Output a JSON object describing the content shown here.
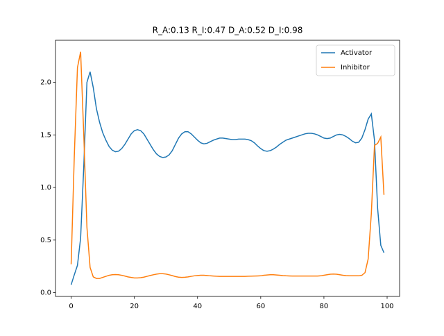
{
  "chart_data": {
    "type": "line",
    "title": "R_A:0.13 R_I:0.47 D_A:0.52 D_I:0.98",
    "x": [
      0,
      1,
      2,
      3,
      4,
      5,
      6,
      7,
      8,
      9,
      10,
      11,
      12,
      13,
      14,
      15,
      16,
      17,
      18,
      19,
      20,
      21,
      22,
      23,
      24,
      25,
      26,
      27,
      28,
      29,
      30,
      31,
      32,
      33,
      34,
      35,
      36,
      37,
      38,
      39,
      40,
      41,
      42,
      43,
      44,
      45,
      46,
      47,
      48,
      49,
      50,
      51,
      52,
      53,
      54,
      55,
      56,
      57,
      58,
      59,
      60,
      61,
      62,
      63,
      64,
      65,
      66,
      67,
      68,
      69,
      70,
      71,
      72,
      73,
      74,
      75,
      76,
      77,
      78,
      79,
      80,
      81,
      82,
      83,
      84,
      85,
      86,
      87,
      88,
      89,
      90,
      91,
      92,
      93,
      94,
      95,
      96,
      97,
      98,
      99
    ],
    "series": [
      {
        "name": "Activator",
        "color": "#1f77b4",
        "values": [
          0.075,
          0.17,
          0.26,
          0.52,
          1.2,
          2.0,
          2.1,
          1.95,
          1.75,
          1.62,
          1.52,
          1.45,
          1.39,
          1.355,
          1.34,
          1.345,
          1.37,
          1.41,
          1.46,
          1.51,
          1.54,
          1.55,
          1.54,
          1.51,
          1.46,
          1.41,
          1.36,
          1.32,
          1.295,
          1.285,
          1.29,
          1.31,
          1.35,
          1.41,
          1.47,
          1.51,
          1.53,
          1.53,
          1.51,
          1.48,
          1.45,
          1.425,
          1.415,
          1.42,
          1.435,
          1.45,
          1.46,
          1.47,
          1.47,
          1.465,
          1.46,
          1.455,
          1.455,
          1.46,
          1.46,
          1.46,
          1.455,
          1.445,
          1.425,
          1.395,
          1.37,
          1.35,
          1.345,
          1.35,
          1.365,
          1.385,
          1.41,
          1.43,
          1.45,
          1.46,
          1.47,
          1.48,
          1.49,
          1.5,
          1.51,
          1.515,
          1.515,
          1.51,
          1.5,
          1.485,
          1.47,
          1.465,
          1.47,
          1.485,
          1.5,
          1.505,
          1.5,
          1.485,
          1.465,
          1.44,
          1.425,
          1.43,
          1.47,
          1.55,
          1.65,
          1.7,
          1.45,
          0.8,
          0.45,
          0.38
        ]
      },
      {
        "name": "Inhibitor",
        "color": "#ff7f0e",
        "values": [
          0.27,
          1.3,
          2.14,
          2.29,
          1.5,
          0.62,
          0.24,
          0.15,
          0.135,
          0.135,
          0.145,
          0.155,
          0.165,
          0.17,
          0.172,
          0.17,
          0.165,
          0.158,
          0.15,
          0.145,
          0.14,
          0.14,
          0.142,
          0.147,
          0.155,
          0.163,
          0.17,
          0.176,
          0.18,
          0.18,
          0.177,
          0.17,
          0.162,
          0.153,
          0.147,
          0.145,
          0.146,
          0.15,
          0.155,
          0.16,
          0.163,
          0.165,
          0.165,
          0.163,
          0.16,
          0.158,
          0.156,
          0.155,
          0.155,
          0.155,
          0.155,
          0.155,
          0.155,
          0.155,
          0.155,
          0.155,
          0.156,
          0.157,
          0.158,
          0.159,
          0.16,
          0.165,
          0.168,
          0.17,
          0.17,
          0.168,
          0.165,
          0.162,
          0.16,
          0.159,
          0.158,
          0.158,
          0.158,
          0.158,
          0.158,
          0.158,
          0.158,
          0.158,
          0.158,
          0.16,
          0.165,
          0.17,
          0.175,
          0.177,
          0.175,
          0.17,
          0.165,
          0.162,
          0.16,
          0.16,
          0.16,
          0.16,
          0.165,
          0.19,
          0.32,
          0.75,
          1.4,
          1.42,
          1.48,
          0.93
        ]
      }
    ],
    "xlim": [
      -4.95,
      103.95
    ],
    "ylim": [
      -0.036,
      2.4
    ],
    "xticks": [
      0,
      20,
      40,
      60,
      80,
      100
    ],
    "yticks": [
      {
        "value": 0,
        "label": "0.0"
      },
      {
        "value": 0.5,
        "label": "0.5"
      },
      {
        "value": 1,
        "label": "1.0"
      },
      {
        "value": 1.5,
        "label": "1.5"
      },
      {
        "value": 2,
        "label": "2.0"
      }
    ],
    "legend": "upper right"
  }
}
